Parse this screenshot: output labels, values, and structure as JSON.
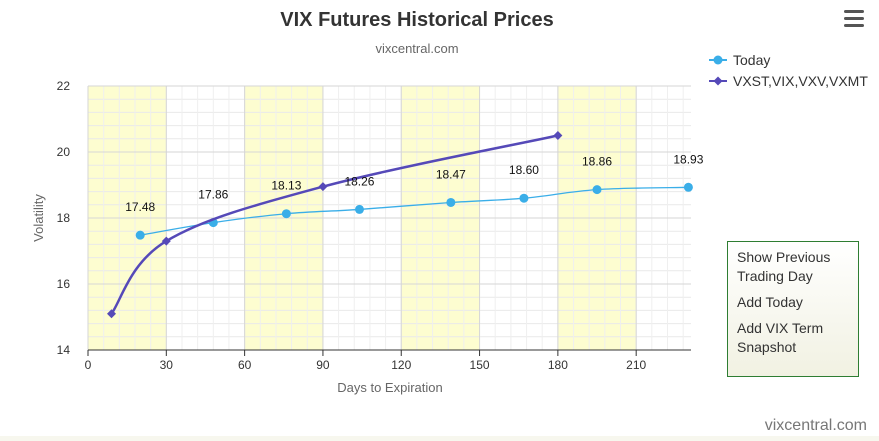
{
  "chart_data": {
    "type": "line",
    "title": "VIX Futures Historical Prices",
    "subtitle": "vixcentral.com",
    "xlabel": "Days to Expiration",
    "ylabel": "Volatility",
    "xlim": [
      0,
      231
    ],
    "ylim": [
      14,
      22
    ],
    "x_ticks": [
      0,
      30,
      60,
      90,
      120,
      150,
      180,
      210
    ],
    "y_ticks": [
      14,
      16,
      18,
      20,
      22
    ],
    "grid": true,
    "shaded_bands": [
      [
        0,
        30
      ],
      [
        60,
        90
      ],
      [
        120,
        150
      ],
      [
        180,
        210
      ]
    ],
    "legend_position": "top-right",
    "series": [
      {
        "name": "Today",
        "color": "#3aaee8",
        "marker": "circle",
        "show_labels": true,
        "x": [
          20,
          48,
          76,
          104,
          139,
          167,
          195,
          230
        ],
        "y": [
          17.48,
          17.86,
          18.13,
          18.26,
          18.47,
          18.6,
          18.86,
          18.93
        ],
        "labels": [
          "17.48",
          "17.86",
          "18.13",
          "18.26",
          "18.47",
          "18.60",
          "18.86",
          "18.93"
        ]
      },
      {
        "name": "VXST,VIX,VXV,VXMT",
        "color": "#5549b8",
        "marker": "diamond",
        "show_labels": false,
        "x": [
          9,
          30,
          90,
          180
        ],
        "y": [
          15.1,
          17.3,
          18.95,
          20.5
        ]
      }
    ]
  },
  "menu": {
    "items": [
      "Show Previous Trading Day",
      "Add Today",
      "Add VIX Term Snapshot"
    ]
  },
  "credit": "vixcentral.com"
}
